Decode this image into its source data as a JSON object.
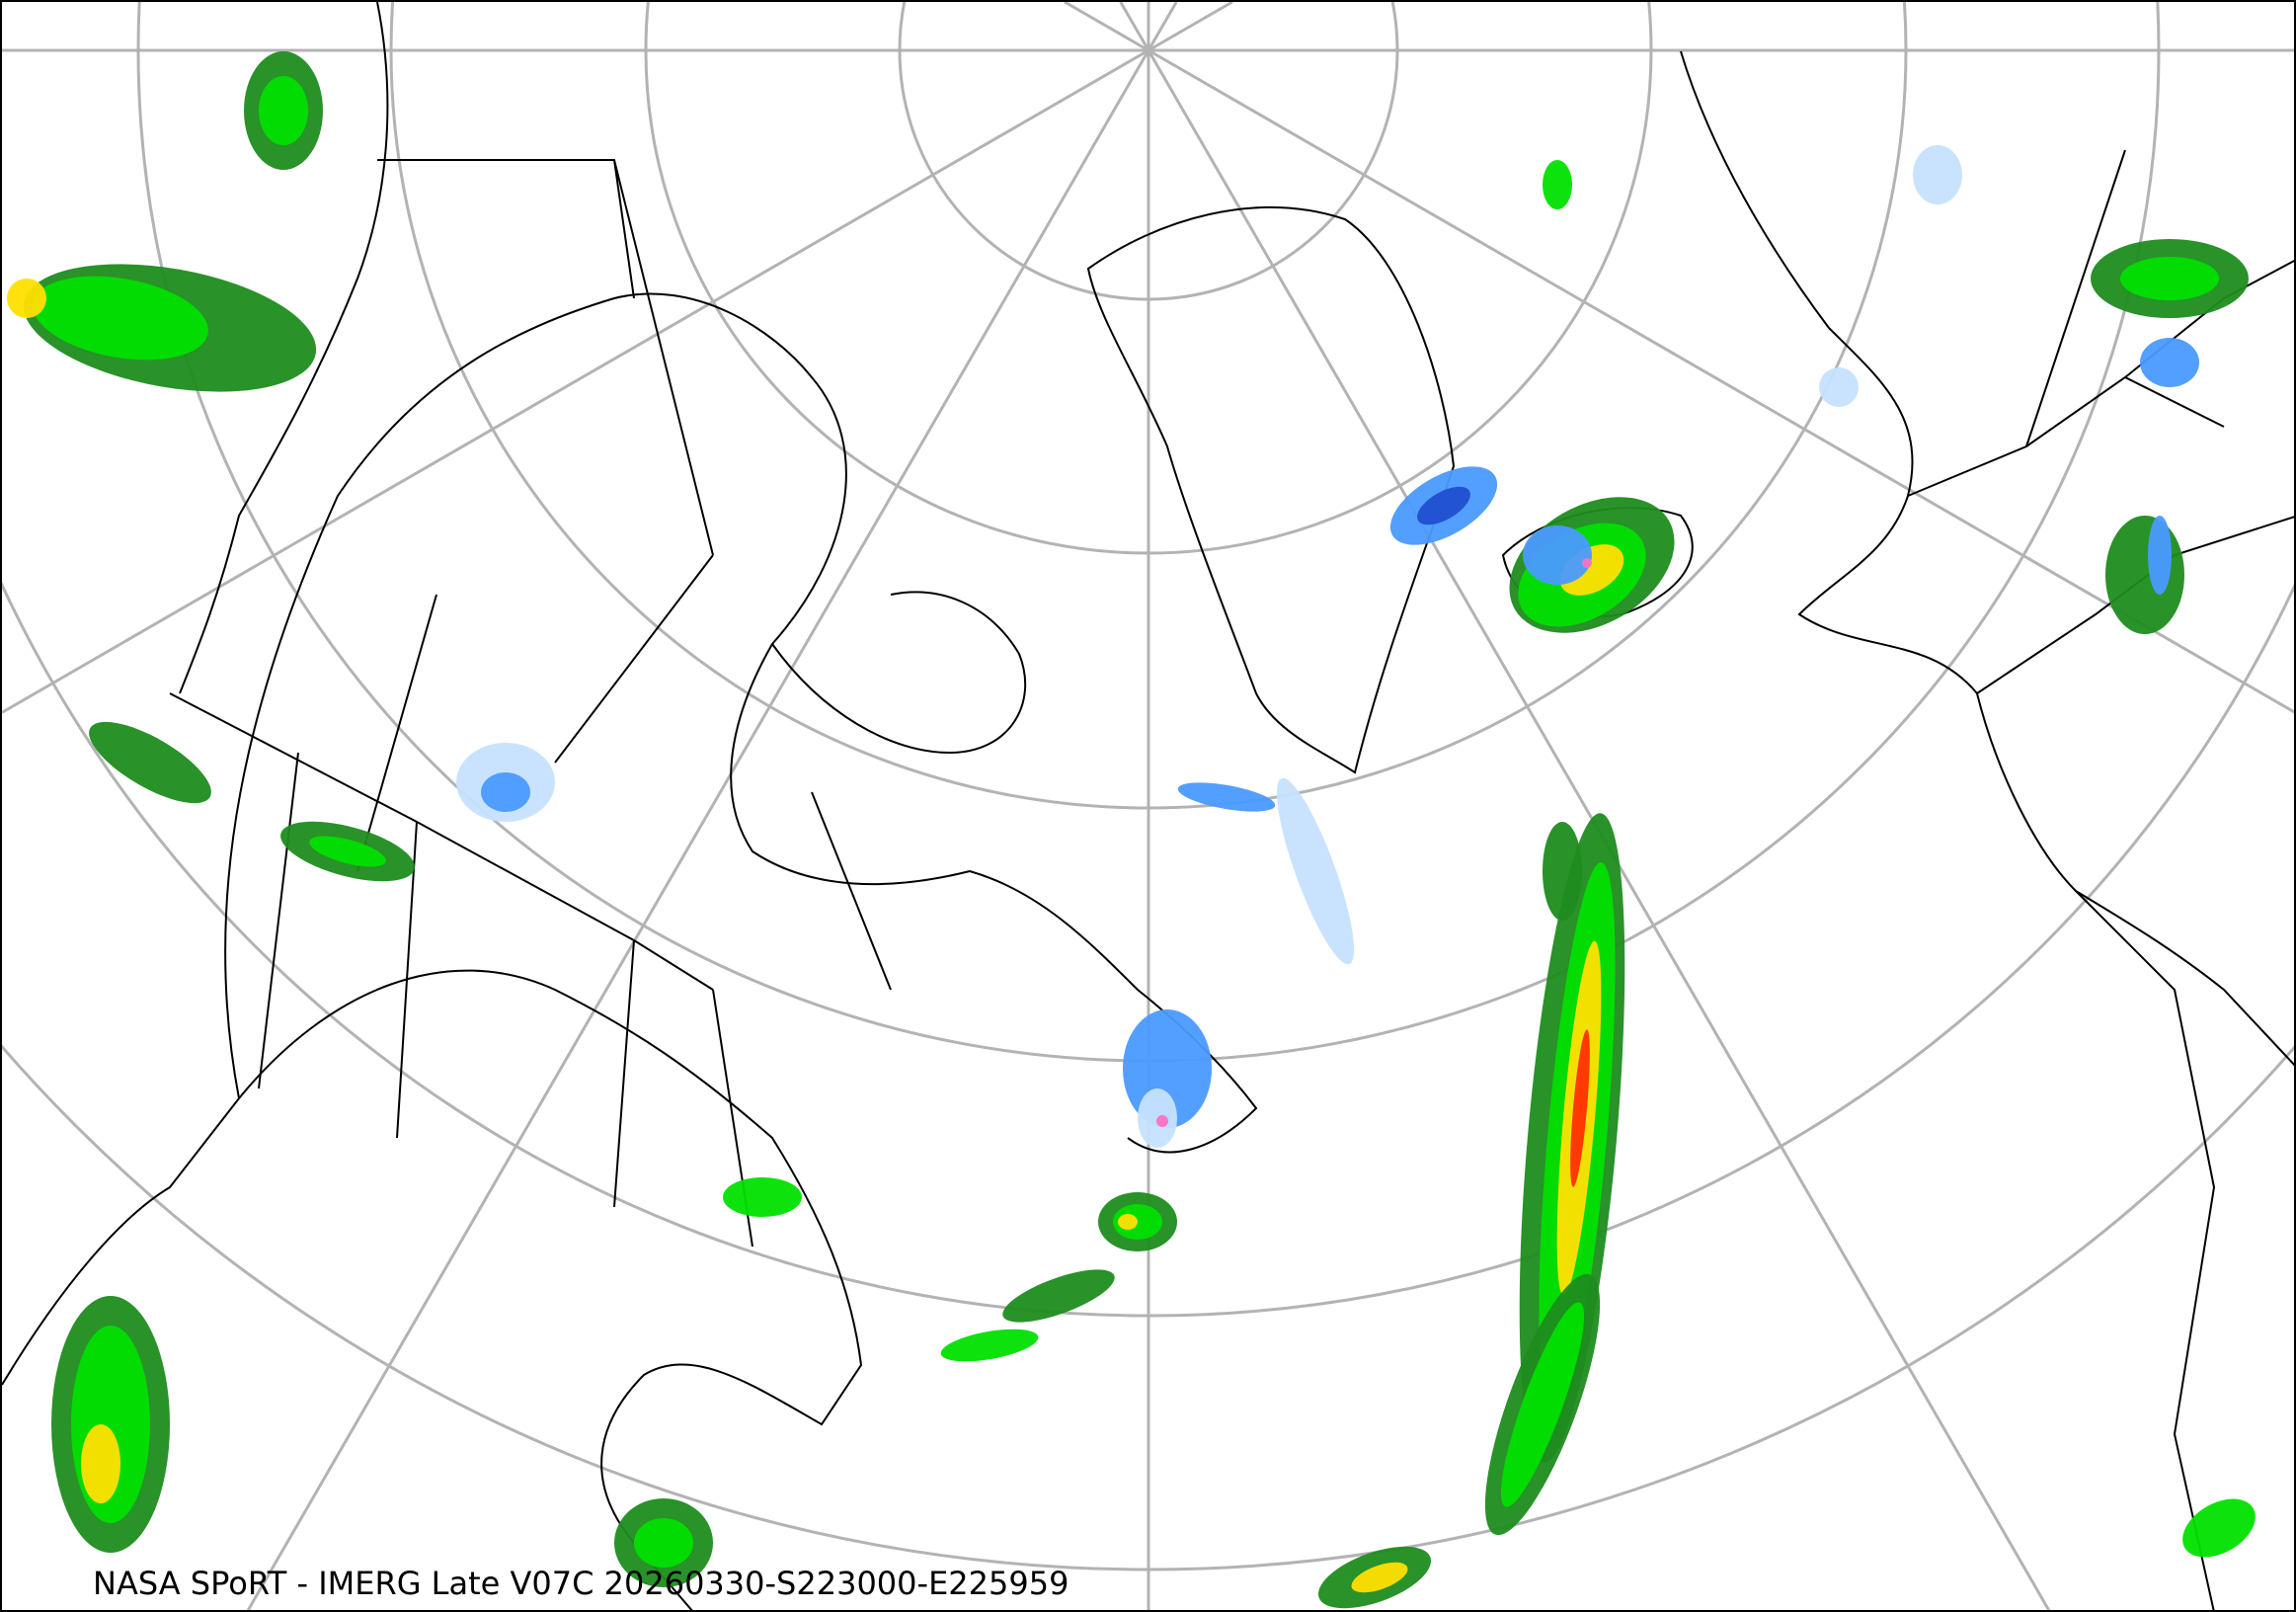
{
  "caption": "NASA SPoRT - IMERG Late V07C 20260330-S223000-E225959",
  "map": {
    "projection": "polar stereographic (north pole)",
    "layers": [
      "graticule",
      "coastlines",
      "political-boundaries",
      "precipitation-rate"
    ],
    "colors": {
      "graticule": "#b3b3b3",
      "boundaries": "#000000",
      "light_rain": "#1e8c1e",
      "moderate_rain": "#00e000",
      "heavy_rain": "#ffe000",
      "very_heavy_rain": "#ff3000",
      "light_snow": "#c6e2ff",
      "moderate_snow": "#4a9aff",
      "heavy_snow": "#1f4fd0",
      "mixed": "#ff70c0"
    }
  }
}
